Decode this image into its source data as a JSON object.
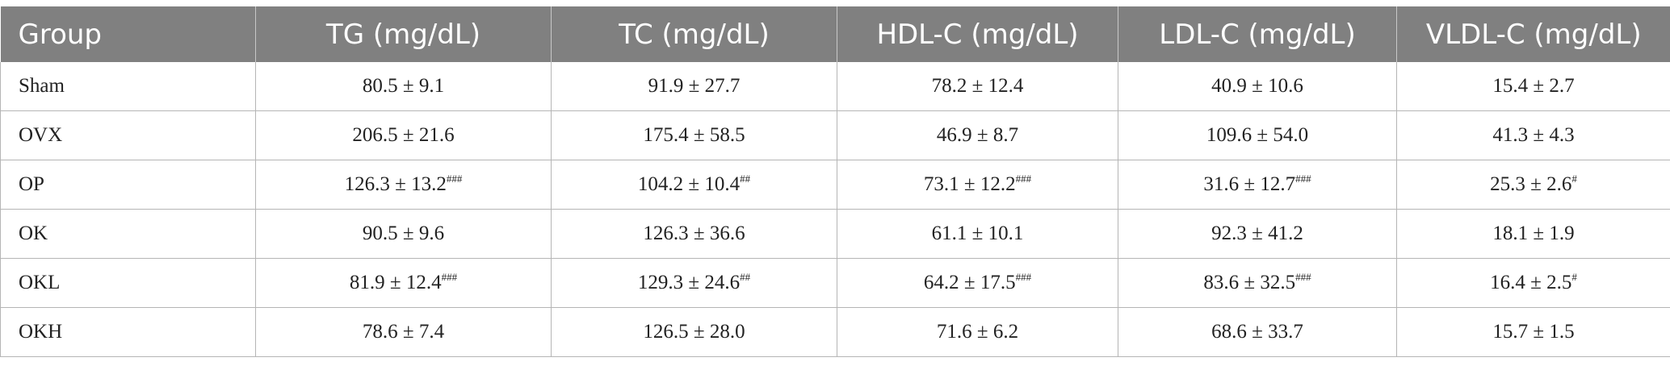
{
  "table": {
    "headers": [
      "Group",
      "TG (mg/dL)",
      "TC (mg/dL)",
      "HDL-C (mg/dL)",
      "LDL-C (mg/dL)",
      "VLDL-C (mg/dL)"
    ],
    "rows": [
      {
        "group": "Sham",
        "cells": [
          {
            "value": "80.5 ± 9.1",
            "mark": ""
          },
          {
            "value": "91.9 ± 27.7",
            "mark": ""
          },
          {
            "value": "78.2 ± 12.4",
            "mark": ""
          },
          {
            "value": "40.9 ± 10.6",
            "mark": ""
          },
          {
            "value": "15.4 ± 2.7",
            "mark": ""
          }
        ]
      },
      {
        "group": "OVX",
        "cells": [
          {
            "value": "206.5 ± 21.6",
            "mark": ""
          },
          {
            "value": "175.4 ± 58.5",
            "mark": ""
          },
          {
            "value": "46.9 ± 8.7",
            "mark": ""
          },
          {
            "value": "109.6 ± 54.0",
            "mark": ""
          },
          {
            "value": "41.3 ± 4.3",
            "mark": ""
          }
        ]
      },
      {
        "group": "OP",
        "cells": [
          {
            "value": "126.3 ± 13.2",
            "mark": "###"
          },
          {
            "value": "104.2 ± 10.4",
            "mark": "##"
          },
          {
            "value": "73.1 ± 12.2",
            "mark": "###"
          },
          {
            "value": "31.6 ± 12.7",
            "mark": "###"
          },
          {
            "value": "25.3 ± 2.6",
            "mark": "#"
          }
        ]
      },
      {
        "group": "OK",
        "cells": [
          {
            "value": "90.5 ± 9.6",
            "mark": ""
          },
          {
            "value": "126.3 ± 36.6",
            "mark": ""
          },
          {
            "value": "61.1 ± 10.1",
            "mark": ""
          },
          {
            "value": "92.3 ± 41.2",
            "mark": ""
          },
          {
            "value": "18.1 ± 1.9",
            "mark": ""
          }
        ]
      },
      {
        "group": "OKL",
        "cells": [
          {
            "value": "81.9 ± 12.4",
            "mark": "###"
          },
          {
            "value": "129.3 ± 24.6",
            "mark": "##"
          },
          {
            "value": "64.2 ± 17.5",
            "mark": "###"
          },
          {
            "value": "83.6 ± 32.5",
            "mark": "###"
          },
          {
            "value": "16.4 ± 2.5",
            "mark": "#"
          }
        ]
      },
      {
        "group": "OKH",
        "cells": [
          {
            "value": "78.6 ± 7.4",
            "mark": ""
          },
          {
            "value": "126.5 ± 28.0",
            "mark": ""
          },
          {
            "value": "71.6 ± 6.2",
            "mark": ""
          },
          {
            "value": "68.6 ± 33.7",
            "mark": ""
          },
          {
            "value": "15.7 ± 1.5",
            "mark": ""
          }
        ]
      }
    ]
  }
}
